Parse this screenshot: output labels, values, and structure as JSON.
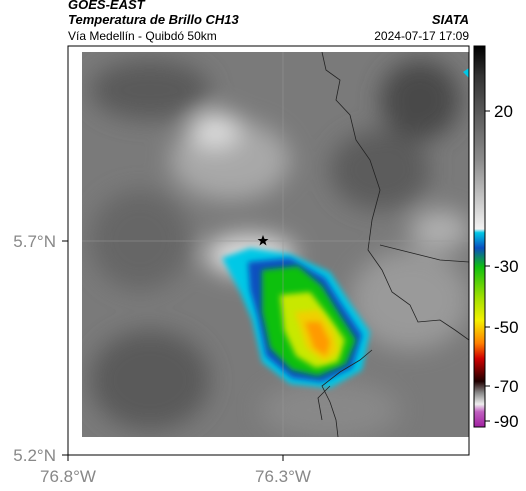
{
  "header": {
    "source": "GOES-EAST",
    "title": "Temperatura de Brillo CH13",
    "org": "SIATA",
    "subtitle": "Vía Medellín - Quibdó 50km",
    "timestamp": "2024-07-17 17:09"
  },
  "map": {
    "lat_labels": [
      "5.7°N",
      "5.2°N"
    ],
    "lon_labels": [
      "76.8°W",
      "76.3°W"
    ]
  },
  "colorbar": {
    "tick_labels": [
      "20",
      "-30",
      "-50",
      "-70",
      "-90"
    ]
  }
}
